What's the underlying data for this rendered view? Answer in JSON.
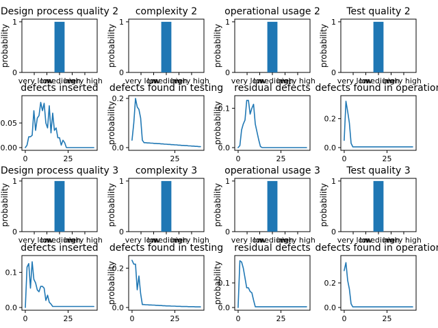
{
  "chart_data": [
    {
      "type": "bar",
      "title": "Design process quality 2",
      "ylabel": "probability",
      "categories": [
        "very low",
        "low",
        "medium",
        "high",
        "very high"
      ],
      "values": [
        0,
        0,
        1,
        0,
        0
      ],
      "ylim": [
        0,
        1
      ],
      "yticks": [
        0,
        1
      ]
    },
    {
      "type": "bar",
      "title": "complexity 2",
      "ylabel": "probability",
      "categories": [
        "very low",
        "low",
        "medium",
        "high",
        "very high"
      ],
      "values": [
        0,
        0,
        1,
        0,
        0
      ],
      "ylim": [
        0,
        1
      ],
      "yticks": [
        0,
        1
      ]
    },
    {
      "type": "bar",
      "title": "operational usage 2",
      "ylabel": "probability",
      "categories": [
        "very low",
        "low",
        "medium",
        "high",
        "very high"
      ],
      "values": [
        0,
        0,
        1,
        0,
        0
      ],
      "ylim": [
        0,
        1
      ],
      "yticks": [
        0,
        1
      ]
    },
    {
      "type": "bar",
      "title": "Test quality 2",
      "ylabel": "probability",
      "categories": [
        "very low",
        "low",
        "medium",
        "high",
        "very high"
      ],
      "values": [
        0,
        0,
        1,
        0,
        0
      ],
      "ylim": [
        0,
        1
      ],
      "yticks": [
        0,
        1
      ]
    },
    {
      "type": "line",
      "title": "defects inserted",
      "ylabel": "",
      "xlim": [
        0,
        40
      ],
      "ylim": [
        0,
        0.1
      ],
      "xticks": [
        0,
        25
      ],
      "yticks": [
        0,
        0.05
      ],
      "ytick_labels": [
        "0.00",
        "0.05"
      ],
      "x": [
        0,
        1,
        2,
        3,
        4,
        5,
        6,
        7,
        8,
        9,
        10,
        11,
        12,
        13,
        14,
        15,
        16,
        17,
        18,
        19,
        20,
        21,
        22,
        23,
        24,
        25,
        26,
        27,
        28,
        29,
        30,
        31,
        32,
        33,
        34,
        35,
        36,
        37,
        38,
        39,
        40
      ],
      "y": [
        0,
        0.005,
        0.022,
        0.022,
        0.025,
        0.075,
        0.035,
        0.06,
        0.065,
        0.092,
        0.075,
        0.09,
        0.05,
        0.04,
        0.085,
        0.03,
        0.07,
        0.035,
        0.04,
        0.02,
        0.02,
        0.005,
        0.015,
        0.01,
        0,
        0,
        0,
        0,
        0,
        0,
        0,
        0,
        0,
        0,
        0,
        0,
        0,
        0,
        0,
        0,
        0
      ]
    },
    {
      "type": "line",
      "title": "defects found in testing",
      "ylabel": "probability",
      "xlim": [
        0,
        40
      ],
      "ylim": [
        0,
        0.2
      ],
      "xticks": [
        25
      ],
      "yticks": [
        0,
        0.2
      ],
      "ytick_labels": [
        "0.0",
        "0.2"
      ],
      "x": [
        0,
        1,
        2,
        3,
        4,
        5,
        6,
        7,
        8,
        9,
        10,
        11,
        12,
        13,
        14,
        15,
        16,
        17,
        18,
        19,
        20,
        21,
        22,
        23,
        24,
        25,
        26,
        27,
        28,
        29,
        30,
        31,
        32,
        33,
        34,
        35,
        36,
        37,
        38,
        39,
        40
      ],
      "y": [
        0.03,
        0.1,
        0.2,
        0.165,
        0.155,
        0.12,
        0.03,
        0.02,
        0.02,
        0.019,
        0.019,
        0.018,
        0.018,
        0.017,
        0.017,
        0.016,
        0.016,
        0.015,
        0.015,
        0.014,
        0.014,
        0.013,
        0.013,
        0.012,
        0.012,
        0.011,
        0.011,
        0.01,
        0.01,
        0.009,
        0.009,
        0.008,
        0.008,
        0.007,
        0.007,
        0.006,
        0.006,
        0.005,
        0.005,
        0.004,
        0.004
      ]
    },
    {
      "type": "line",
      "title": "residual defects",
      "ylabel": "probability",
      "xlim": [
        0,
        40
      ],
      "ylim": [
        0,
        0.125
      ],
      "xticks": [
        0,
        25
      ],
      "yticks": [
        0,
        0.1
      ],
      "ytick_labels": [
        "0.0",
        "0.1"
      ],
      "x": [
        0,
        1,
        2,
        3,
        4,
        5,
        6,
        7,
        8,
        9,
        10,
        11,
        12,
        13,
        14,
        15,
        16,
        17,
        18,
        19,
        20,
        21,
        22,
        23,
        24,
        25,
        26,
        27,
        28,
        29,
        30,
        31,
        32,
        33,
        34,
        35,
        36,
        37,
        38,
        39,
        40
      ],
      "y": [
        0,
        0.005,
        0.045,
        0.06,
        0.07,
        0.12,
        0.12,
        0.085,
        0.1,
        0.11,
        0.06,
        0.04,
        0.02,
        0.003,
        0,
        0,
        0,
        0,
        0,
        0,
        0,
        0,
        0,
        0,
        0,
        0,
        0,
        0,
        0,
        0,
        0,
        0,
        0,
        0,
        0,
        0,
        0,
        0,
        0,
        0,
        0
      ]
    },
    {
      "type": "line",
      "title": "defects found in operation",
      "ylabel": "",
      "xlim": [
        0,
        40
      ],
      "ylim": [
        0,
        0.34
      ],
      "xticks": [
        0,
        25
      ],
      "yticks": [
        0,
        0.2
      ],
      "ytick_labels": [
        "0.0",
        "0.2"
      ],
      "x": [
        0,
        1,
        2,
        3,
        4,
        5,
        6,
        7,
        8,
        9,
        10,
        11,
        12,
        13,
        14,
        15,
        16,
        17,
        18,
        19,
        20,
        21,
        22,
        23,
        24,
        25,
        26,
        27,
        28,
        29,
        30,
        31,
        32,
        33,
        34,
        35,
        36,
        37,
        38,
        39,
        40
      ],
      "y": [
        0.05,
        0.32,
        0.25,
        0.17,
        0.03,
        0.005,
        0.005,
        0.005,
        0.005,
        0.005,
        0.005,
        0.005,
        0.005,
        0.005,
        0.005,
        0.005,
        0.005,
        0.005,
        0.005,
        0.005,
        0.005,
        0.005,
        0.005,
        0.005,
        0.005,
        0.005,
        0.005,
        0.005,
        0.005,
        0.005,
        0.005,
        0.005,
        0.005,
        0.005,
        0.005,
        0.005,
        0.005,
        0.005,
        0.005,
        0.005,
        0.005
      ]
    },
    {
      "type": "bar",
      "title": "Design process quality 3",
      "ylabel": "probability",
      "categories": [
        "very low",
        "low",
        "medium",
        "high",
        "very high"
      ],
      "values": [
        0,
        0,
        1,
        0,
        0
      ],
      "ylim": [
        0,
        1
      ],
      "yticks": [
        0,
        1
      ]
    },
    {
      "type": "bar",
      "title": "complexity 3",
      "ylabel": "probability",
      "categories": [
        "very low",
        "low",
        "medium",
        "high",
        "very high"
      ],
      "values": [
        0,
        0,
        1,
        0,
        0
      ],
      "ylim": [
        0,
        1
      ],
      "yticks": [
        0,
        1
      ]
    },
    {
      "type": "bar",
      "title": "operational usage 3",
      "ylabel": "probability",
      "categories": [
        "very low",
        "low",
        "medium",
        "high",
        "very high"
      ],
      "values": [
        0,
        0,
        1,
        0,
        0
      ],
      "ylim": [
        0,
        1
      ],
      "yticks": [
        0,
        1
      ]
    },
    {
      "type": "bar",
      "title": "Test quality 3",
      "ylabel": "probability",
      "categories": [
        "very low",
        "low",
        "medium",
        "high",
        "very high"
      ],
      "values": [
        0,
        0,
        1,
        0,
        0
      ],
      "ylim": [
        0,
        1
      ],
      "yticks": [
        0,
        1
      ]
    },
    {
      "type": "line",
      "title": "defects inserted",
      "ylabel": "",
      "xlim": [
        0,
        40
      ],
      "ylim": [
        0,
        0.14
      ],
      "xticks": [
        0,
        25
      ],
      "yticks": [
        0,
        0.1
      ],
      "ytick_labels": [
        "0.0",
        "0.1"
      ],
      "x": [
        0,
        1,
        2,
        3,
        4,
        5,
        6,
        7,
        8,
        9,
        10,
        11,
        12,
        13,
        14,
        15,
        16,
        17,
        18,
        19,
        20,
        21,
        22,
        23,
        24,
        25,
        26,
        27,
        28,
        29,
        30,
        31,
        32,
        33,
        34,
        35,
        36,
        37,
        38,
        39,
        40
      ],
      "y": [
        0,
        0.115,
        0.125,
        0.055,
        0.13,
        0.08,
        0.07,
        0.05,
        0.045,
        0.06,
        0.06,
        0.055,
        0.02,
        0.035,
        0.015,
        0.01,
        0.003,
        0.003,
        0.003,
        0.003,
        0.003,
        0.003,
        0.003,
        0.003,
        0.003,
        0.003,
        0.003,
        0.003,
        0.003,
        0.003,
        0.003,
        0.003,
        0.003,
        0.003,
        0.003,
        0.003,
        0.003,
        0.003,
        0.003,
        0.003,
        0.003
      ]
    },
    {
      "type": "line",
      "title": "defects found in testing",
      "ylabel": "probability",
      "xlim": [
        0,
        40
      ],
      "ylim": [
        0,
        0.25
      ],
      "xticks": [
        0,
        25
      ],
      "yticks": [
        0,
        0.2
      ],
      "ytick_labels": [
        "0.0",
        "0.2"
      ],
      "x": [
        0,
        1,
        2,
        3,
        4,
        5,
        6,
        7,
        8,
        9,
        10,
        11,
        12,
        13,
        14,
        15,
        16,
        17,
        18,
        19,
        20,
        21,
        22,
        23,
        24,
        25,
        26,
        27,
        28,
        29,
        30,
        31,
        32,
        33,
        34,
        35,
        36,
        37,
        38,
        39,
        40
      ],
      "y": [
        0.24,
        0.22,
        0.22,
        0.09,
        0.16,
        0.07,
        0.015,
        0.015,
        0.014,
        0.014,
        0.013,
        0.013,
        0.012,
        0.012,
        0.011,
        0.011,
        0.01,
        0.01,
        0.009,
        0.009,
        0.008,
        0.008,
        0.008,
        0.007,
        0.007,
        0.007,
        0.006,
        0.006,
        0.006,
        0.005,
        0.005,
        0.005,
        0.005,
        0.004,
        0.004,
        0.004,
        0.004,
        0.003,
        0.003,
        0.003,
        0.003
      ]
    },
    {
      "type": "line",
      "title": "residual defects",
      "ylabel": "probability",
      "xlim": [
        0,
        40
      ],
      "ylim": [
        0,
        0.2
      ],
      "xticks": [
        0,
        25
      ],
      "yticks": [
        0,
        0.1
      ],
      "ytick_labels": [
        "0.0",
        "0.1"
      ],
      "x": [
        0,
        1,
        2,
        3,
        4,
        5,
        6,
        7,
        8,
        9,
        10,
        11,
        12,
        13,
        14,
        15,
        16,
        17,
        18,
        19,
        20,
        21,
        22,
        23,
        24,
        25,
        26,
        27,
        28,
        29,
        30,
        31,
        32,
        33,
        34,
        35,
        36,
        37,
        38,
        39,
        40
      ],
      "y": [
        0,
        0.19,
        0.185,
        0.16,
        0.12,
        0.08,
        0.08,
        0.065,
        0.06,
        0.03,
        0.003,
        0.003,
        0.003,
        0.003,
        0.003,
        0.003,
        0.003,
        0.003,
        0.003,
        0.003,
        0.003,
        0.003,
        0.003,
        0.003,
        0.003,
        0.003,
        0.003,
        0.003,
        0.003,
        0.003,
        0.003,
        0.003,
        0.003,
        0.003,
        0.003,
        0.003,
        0.003,
        0.003,
        0.003,
        0.003,
        0.003
      ]
    },
    {
      "type": "line",
      "title": "defects found in operation",
      "ylabel": "",
      "xlim": [
        0,
        40
      ],
      "ylim": [
        0,
        0.4
      ],
      "xticks": [
        0,
        25
      ],
      "yticks": [
        0,
        0.2
      ],
      "ytick_labels": [
        "0.0",
        "0.2"
      ],
      "x": [
        0,
        1,
        2,
        3,
        4,
        5,
        6,
        7,
        8,
        9,
        10,
        11,
        12,
        13,
        14,
        15,
        16,
        17,
        18,
        19,
        20,
        21,
        22,
        23,
        24,
        25,
        26,
        27,
        28,
        29,
        30,
        31,
        32,
        33,
        34,
        35,
        36,
        37,
        38,
        39,
        40
      ],
      "y": [
        0.3,
        0.365,
        0.22,
        0.15,
        0.03,
        0.005,
        0.005,
        0.005,
        0.005,
        0.005,
        0.005,
        0.005,
        0.005,
        0.005,
        0.005,
        0.005,
        0.005,
        0.005,
        0.005,
        0.005,
        0.005,
        0.005,
        0.005,
        0.005,
        0.005,
        0.005,
        0.005,
        0.005,
        0.005,
        0.005,
        0.005,
        0.005,
        0.005,
        0.005,
        0.005,
        0.005,
        0.005,
        0.005,
        0.005,
        0.005,
        0.005
      ]
    }
  ]
}
